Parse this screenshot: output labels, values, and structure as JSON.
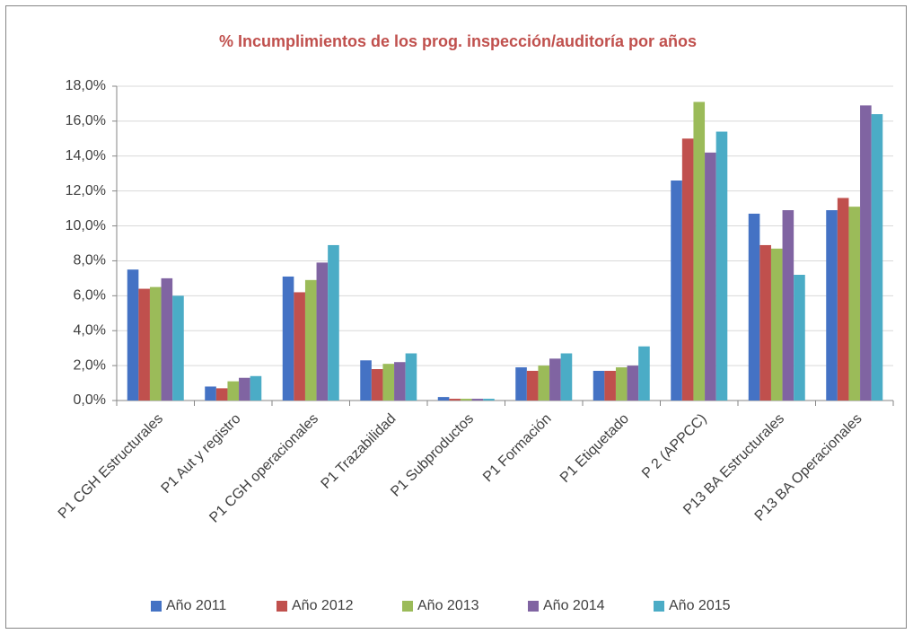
{
  "chart_data": {
    "type": "bar",
    "title": "% Incumplimientos de los prog. inspección/auditoría por años",
    "categories": [
      "P1 CGH Estructurales",
      "P1 Aut y registro",
      "P1 CGH operacionales",
      "P1 Trazabilidad",
      "P1 Subproductos",
      "P1 Formación",
      "P1 Etiquetado",
      "P 2 (APPCC)",
      "P13 BA Estructurales",
      "P13 BA Operacionales"
    ],
    "series": [
      {
        "name": "Año 2011",
        "color": "#4472c4",
        "values": [
          7.5,
          0.8,
          7.1,
          2.3,
          0.2,
          1.9,
          1.7,
          12.6,
          10.7,
          10.9
        ]
      },
      {
        "name": "Año 2012",
        "color": "#c0504d",
        "values": [
          6.4,
          0.7,
          6.2,
          1.8,
          0.1,
          1.7,
          1.7,
          15.0,
          8.9,
          11.6
        ]
      },
      {
        "name": "Año 2013",
        "color": "#9bbb59",
        "values": [
          6.5,
          1.1,
          6.9,
          2.1,
          0.1,
          2.0,
          1.9,
          17.1,
          8.7,
          11.1
        ]
      },
      {
        "name": "Año 2014",
        "color": "#8064a2",
        "values": [
          7.0,
          1.3,
          7.9,
          2.2,
          0.1,
          2.4,
          2.0,
          14.2,
          10.9,
          16.9
        ]
      },
      {
        "name": "Año 2015",
        "color": "#4bacc6",
        "values": [
          6.0,
          1.4,
          8.9,
          2.7,
          0.1,
          2.7,
          3.1,
          15.4,
          7.2,
          16.4
        ]
      }
    ],
    "ylim": [
      0,
      18
    ],
    "yticks": [
      {
        "value": 0,
        "label": "0,0%"
      },
      {
        "value": 2,
        "label": "2,0%"
      },
      {
        "value": 4,
        "label": "4,0%"
      },
      {
        "value": 6,
        "label": "6,0%"
      },
      {
        "value": 8,
        "label": "8,0%"
      },
      {
        "value": 10,
        "label": "10,0%"
      },
      {
        "value": 12,
        "label": "12,0%"
      },
      {
        "value": 14,
        "label": "14,0%"
      },
      {
        "value": 16,
        "label": "16,0%"
      },
      {
        "value": 18,
        "label": "18,0%"
      }
    ],
    "grid": true,
    "legend": "bottom"
  }
}
